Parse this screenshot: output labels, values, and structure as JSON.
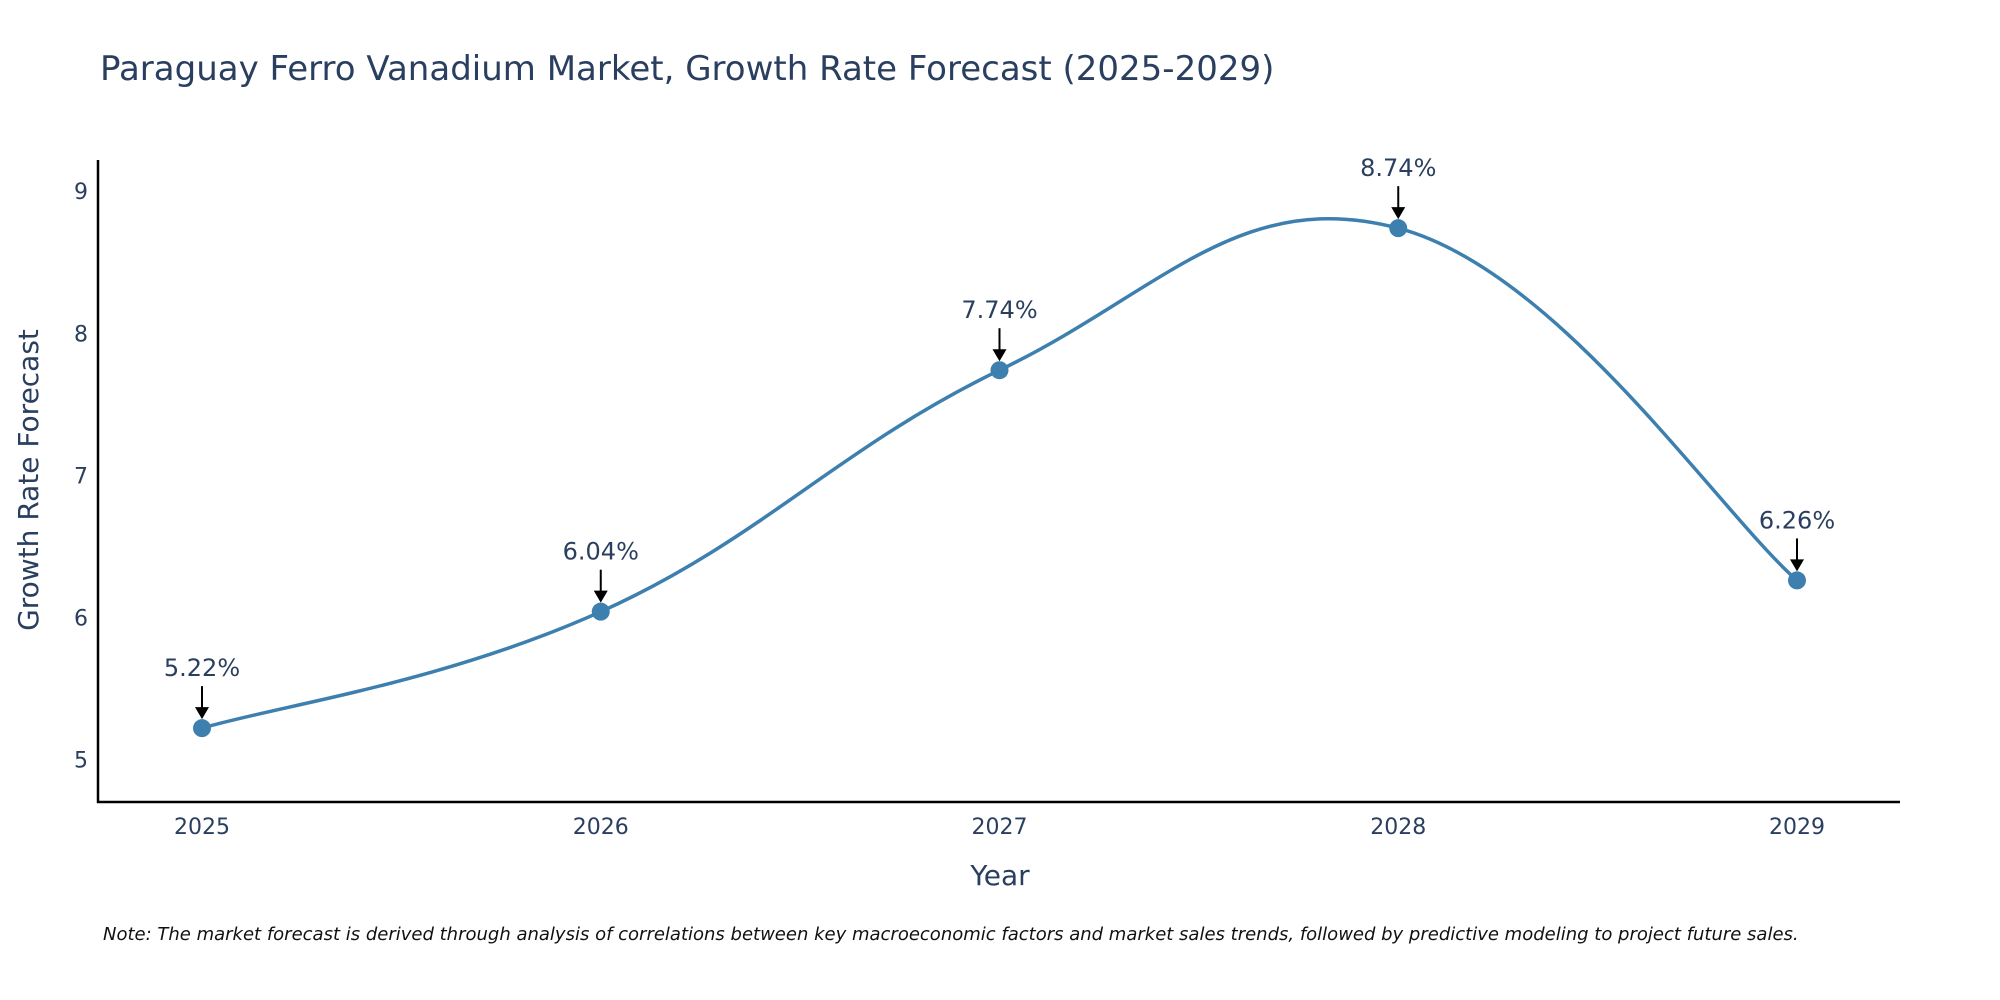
{
  "chart_data": {
    "type": "line",
    "title": "Paraguay Ferro Vanadium Market, Growth Rate Forecast (2025-2029)",
    "xlabel": "Year",
    "ylabel": "Growth Rate Forecast",
    "categories": [
      "2025",
      "2026",
      "2027",
      "2028",
      "2029"
    ],
    "series": [
      {
        "name": "Growth Rate Forecast",
        "values": [
          5.22,
          6.04,
          7.74,
          8.74,
          6.26
        ],
        "labels": [
          "5.22%",
          "6.04%",
          "7.74%",
          "8.74%",
          "6.26%"
        ]
      }
    ],
    "yticks": [
      "5",
      "6",
      "7",
      "8",
      "9"
    ],
    "ylim": [
      4.7,
      9.22
    ],
    "grid": false,
    "line_shape": "spline",
    "note": "Note: The market forecast is derived through analysis of correlations between key macroeconomic factors and market sales trends, followed by predictive modeling to project future sales."
  },
  "colors": {
    "series": "#3d7fae",
    "text": "#2a3f5f",
    "axis": "#000000"
  }
}
